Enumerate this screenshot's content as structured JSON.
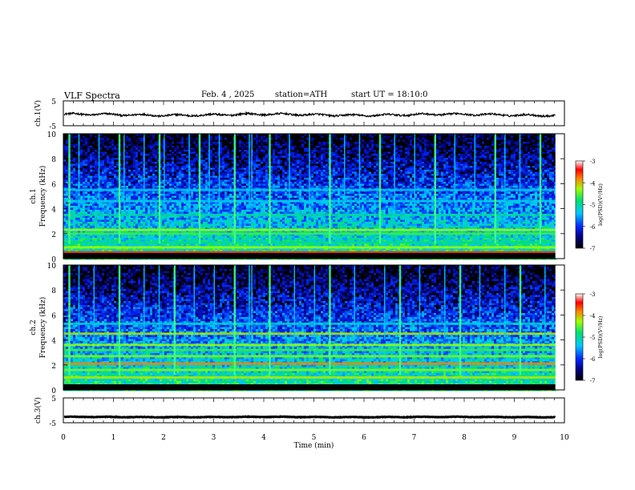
{
  "header": {
    "title": "VLF Spectra",
    "date": "Feb. 4 , 2025",
    "station": "station=ATH",
    "start": "start UT = 18:10:0"
  },
  "chart_data": [
    {
      "type": "line",
      "panel": "ch1-waveform",
      "ylabel": "ch.1(V)",
      "ylim": [
        -5,
        5
      ],
      "yticks": [
        "5",
        "-5"
      ],
      "xlim": [
        0,
        10
      ],
      "series": [
        {
          "mean": -0.6,
          "amplitude": 0.6
        }
      ]
    },
    {
      "type": "heatmap",
      "panel": "ch1-spectrogram",
      "ylabel": "ch.1\nFrequency (kHz)",
      "ylim": [
        0,
        10
      ],
      "yticks": [
        "0",
        "2",
        "4",
        "6",
        "8",
        "10"
      ],
      "xlim": [
        0,
        9.8
      ],
      "value_label": "log(PSD)(V²/Hz)",
      "colorbar_ticks": [
        "-3",
        "-4",
        "-5",
        "-6",
        "-7"
      ],
      "colorbar_range": [
        -7,
        -3
      ],
      "bands_khz": [
        {
          "f": 0.2,
          "v": -4.0
        },
        {
          "f": 0.5,
          "v": -3.5
        },
        {
          "f": 0.9,
          "v": -4.3
        },
        {
          "f": 1.3,
          "v": -4.9
        },
        {
          "f": 2.0,
          "v": -4.6
        },
        {
          "f": 2.3,
          "v": -4.3
        },
        {
          "f": 3.5,
          "v": -5.0
        },
        {
          "f": 4.6,
          "v": -5.3
        },
        {
          "f": 5.5,
          "v": -5.4
        }
      ],
      "spheric_times_min": [
        0.1,
        0.3,
        0.7,
        1.1,
        1.2,
        1.6,
        1.9,
        2.0,
        2.5,
        2.7,
        2.9,
        3.1,
        3.4,
        3.7,
        3.75,
        4.1,
        4.5,
        4.9,
        5.3,
        5.6,
        5.9,
        6.3,
        6.6,
        7.0,
        7.4,
        7.8,
        8.2,
        8.6,
        8.8,
        9.1,
        9.5
      ]
    },
    {
      "type": "heatmap",
      "panel": "ch2-spectrogram",
      "ylabel": "ch.2\nFrequency (kHz)",
      "ylim": [
        0,
        10
      ],
      "yticks": [
        "0",
        "2",
        "4",
        "6",
        "8",
        "10"
      ],
      "xlim": [
        0,
        9.8
      ],
      "value_label": "log(PSD)(V²/Hz)",
      "colorbar_ticks": [
        "-3",
        "-4",
        "-5",
        "-6",
        "-7"
      ],
      "colorbar_range": [
        -7,
        -3
      ],
      "bands_khz": [
        {
          "f": 0.3,
          "v": -4.0
        },
        {
          "f": 1.0,
          "v": -4.2
        },
        {
          "f": 1.6,
          "v": -4.4
        },
        {
          "f": 2.1,
          "v": -3.8
        },
        {
          "f": 2.7,
          "v": -4.4
        },
        {
          "f": 3.2,
          "v": -4.6
        },
        {
          "f": 3.6,
          "v": -4.3
        },
        {
          "f": 4.5,
          "v": -4.2
        },
        {
          "f": 5.3,
          "v": -5.2
        }
      ],
      "spheric_times_min": [
        0.1,
        0.3,
        0.6,
        1.1,
        1.6,
        1.9,
        2.2,
        2.6,
        3.0,
        3.4,
        3.7,
        3.75,
        4.1,
        4.6,
        5.0,
        5.3,
        5.8,
        6.4,
        6.7,
        7.1,
        7.6,
        7.9,
        8.3,
        8.8,
        9.1,
        9.6
      ]
    },
    {
      "type": "line",
      "panel": "ch3-waveform",
      "ylabel": "ch.3(V)",
      "ylim": [
        -5,
        5
      ],
      "yticks": [
        "5",
        "-5"
      ],
      "xlim": [
        0,
        10
      ],
      "xlabel": "Time (min)",
      "xticks": [
        "0",
        "1",
        "2",
        "3",
        "4",
        "5",
        "6",
        "7",
        "8",
        "9",
        "10"
      ],
      "series": [
        {
          "mean": -2.7,
          "amplitude": 0.15
        }
      ]
    }
  ]
}
